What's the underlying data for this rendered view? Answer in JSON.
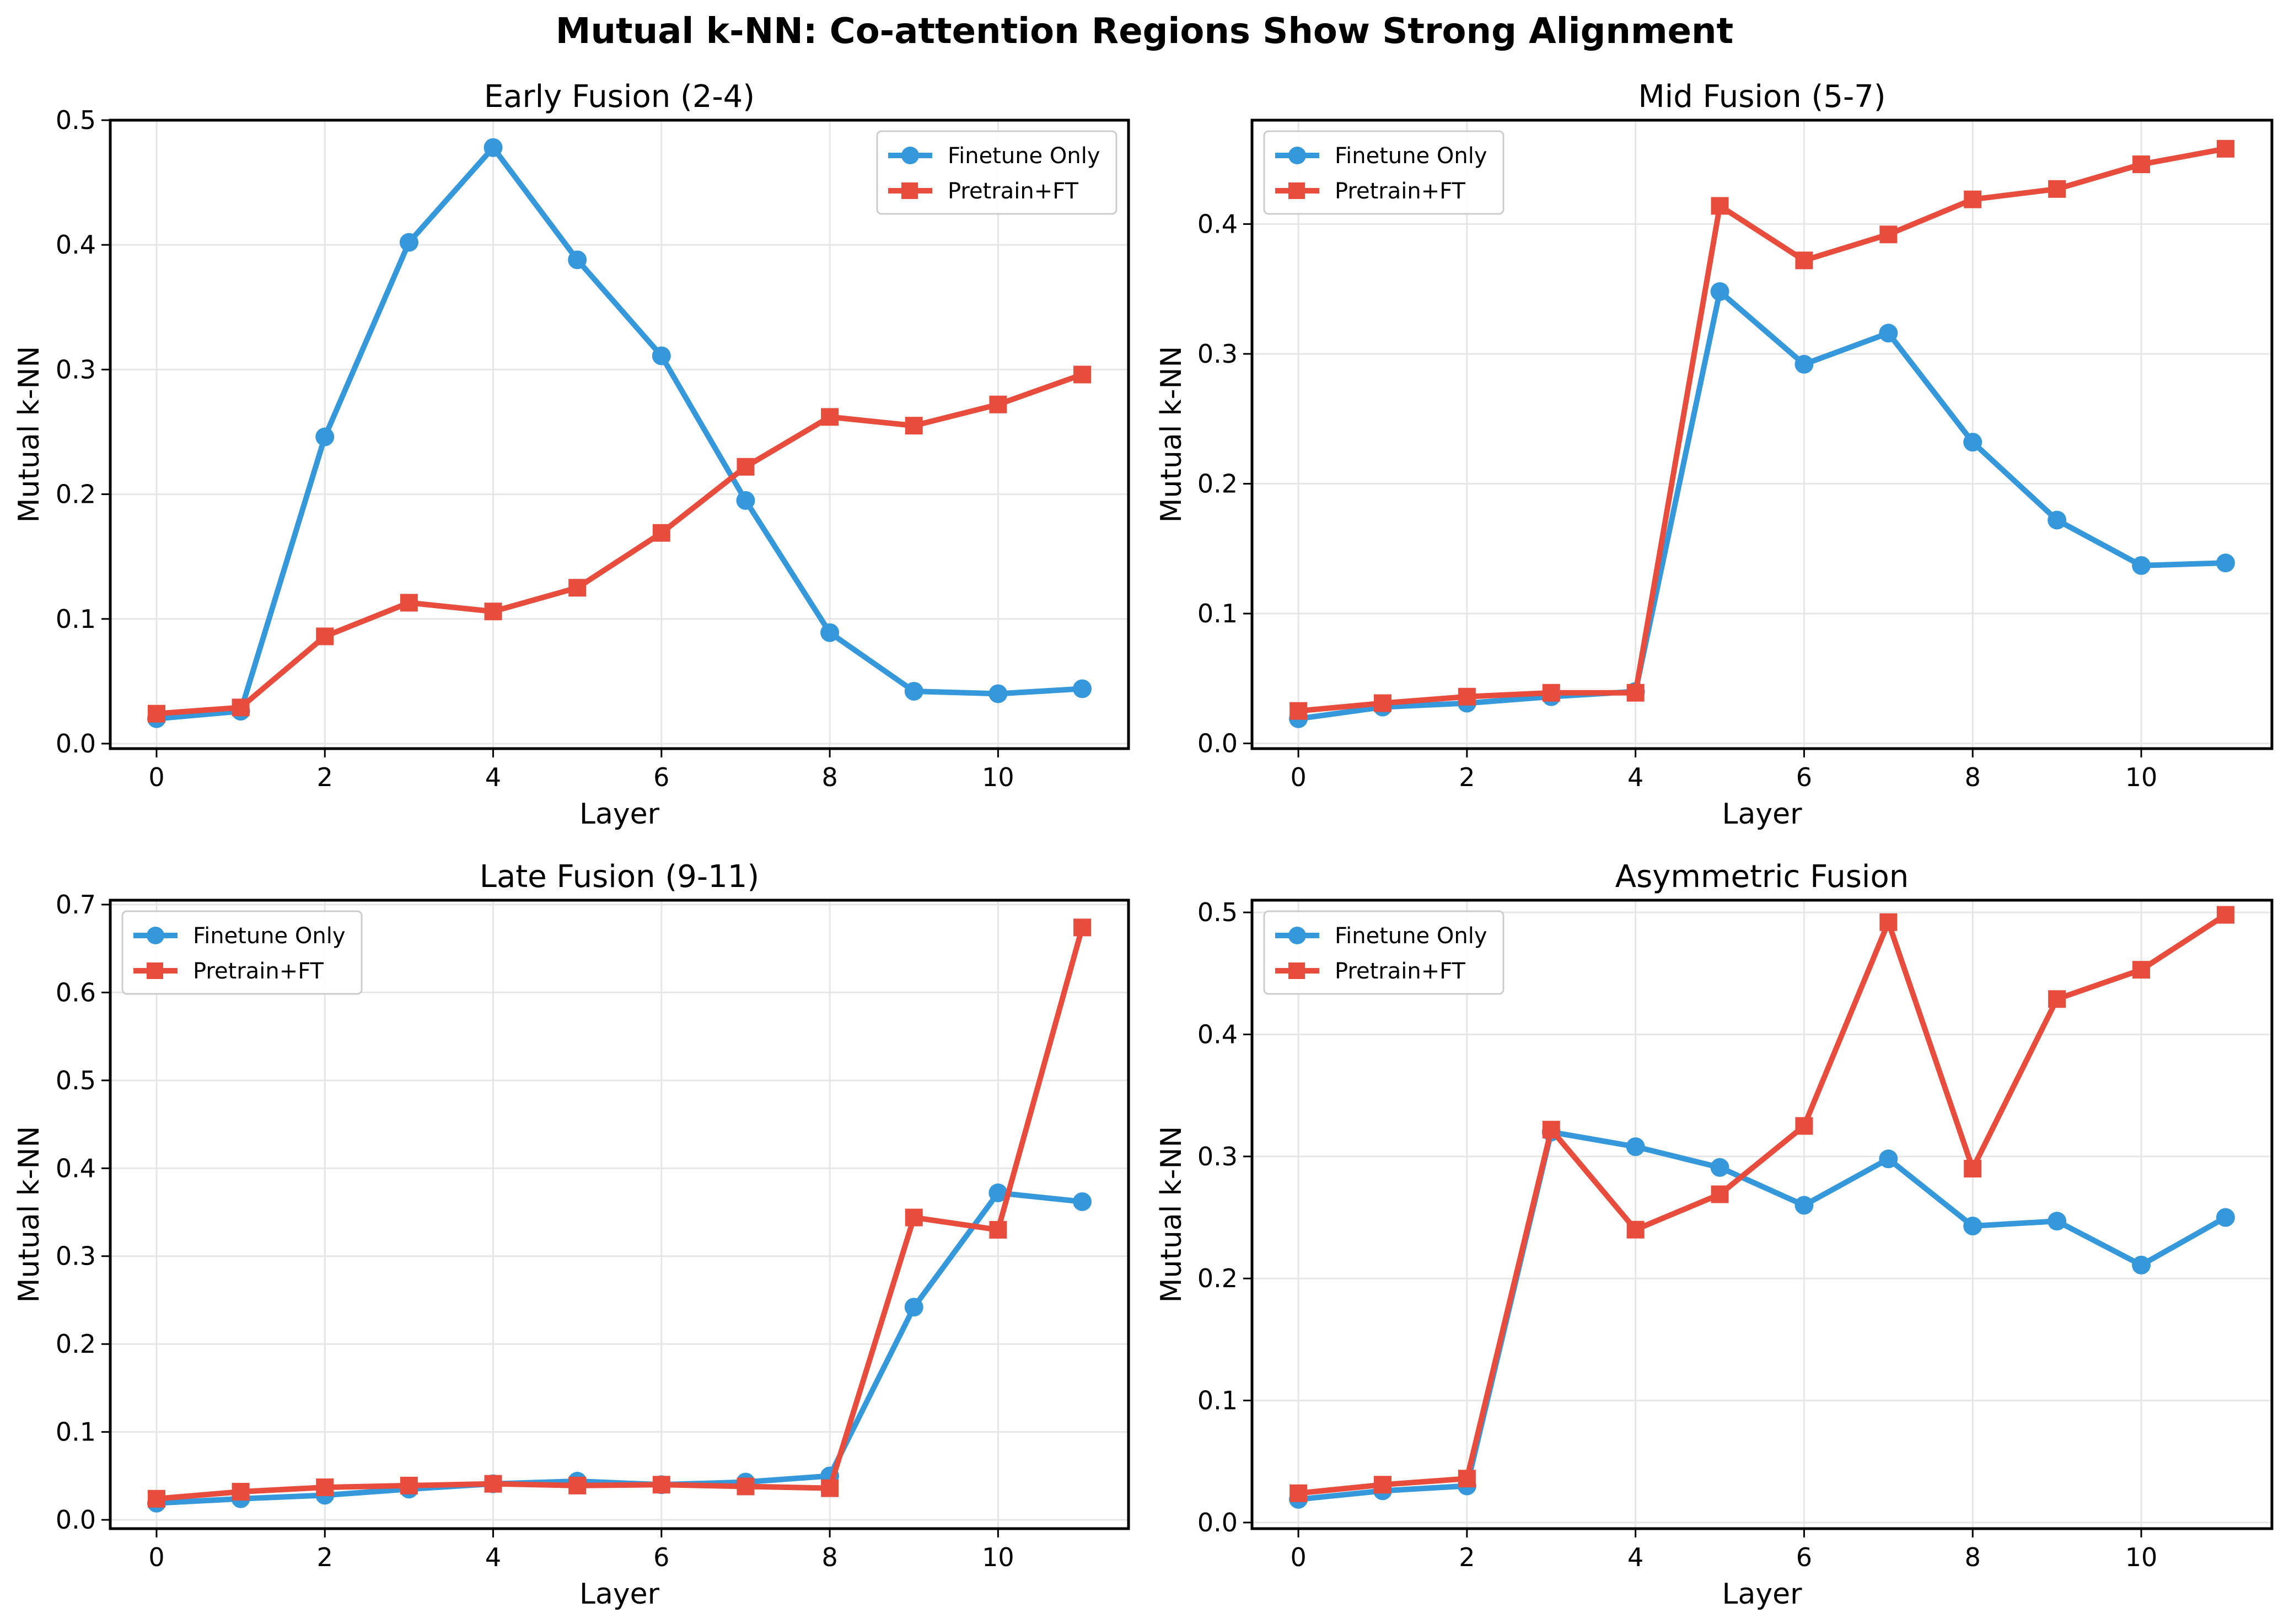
{
  "figure_title": "Mutual k-NN: Co-attention Regions Show Strong Alignment",
  "colors": {
    "finetune": "#3498db",
    "pretrain": "#e74c3c",
    "grid": "#e6e6e6",
    "axes": "#000000"
  },
  "legend": {
    "finetune": "Finetune Only",
    "pretrain": "Pretrain+FT"
  },
  "chart_data": [
    {
      "type": "line",
      "title": "Early Fusion (2-4)",
      "xlabel": "Layer",
      "ylabel": "Mutual k-NN",
      "x": [
        0,
        1,
        2,
        3,
        4,
        5,
        6,
        7,
        8,
        9,
        10,
        11
      ],
      "xticks": [
        "0",
        "2",
        "4",
        "6",
        "8",
        "10"
      ],
      "yticks": [
        "0.0",
        "0.1",
        "0.2",
        "0.3",
        "0.4",
        "0.5"
      ],
      "xlim": [
        -0.55,
        11.55
      ],
      "ylim": [
        -0.004,
        0.5
      ],
      "grid": true,
      "legend_position": "upper right",
      "series": [
        {
          "name": "Finetune Only",
          "marker": "circle",
          "values": [
            0.02,
            0.026,
            0.246,
            0.402,
            0.478,
            0.388,
            0.311,
            0.195,
            0.089,
            0.042,
            0.04,
            0.044
          ]
        },
        {
          "name": "Pretrain+FT",
          "marker": "square",
          "values": [
            0.024,
            0.029,
            0.086,
            0.113,
            0.106,
            0.125,
            0.169,
            0.222,
            0.262,
            0.255,
            0.272,
            0.296
          ]
        }
      ]
    },
    {
      "type": "line",
      "title": "Mid Fusion (5-7)",
      "xlabel": "Layer",
      "ylabel": "Mutual k-NN",
      "x": [
        0,
        1,
        2,
        3,
        4,
        5,
        6,
        7,
        8,
        9,
        10,
        11
      ],
      "xticks": [
        "0",
        "2",
        "4",
        "6",
        "8",
        "10"
      ],
      "yticks": [
        "0.0",
        "0.1",
        "0.2",
        "0.3",
        "0.4"
      ],
      "xlim": [
        -0.55,
        11.55
      ],
      "ylim": [
        -0.004,
        0.48
      ],
      "grid": true,
      "legend_position": "upper left",
      "series": [
        {
          "name": "Finetune Only",
          "marker": "circle",
          "values": [
            0.019,
            0.028,
            0.031,
            0.036,
            0.04,
            0.348,
            0.292,
            0.316,
            0.232,
            0.172,
            0.137,
            0.139
          ]
        },
        {
          "name": "Pretrain+FT",
          "marker": "square",
          "values": [
            0.025,
            0.031,
            0.036,
            0.039,
            0.039,
            0.414,
            0.372,
            0.392,
            0.419,
            0.427,
            0.446,
            0.458
          ]
        }
      ]
    },
    {
      "type": "line",
      "title": "Late Fusion (9-11)",
      "xlabel": "Layer",
      "ylabel": "Mutual k-NN",
      "x": [
        0,
        1,
        2,
        3,
        4,
        5,
        6,
        7,
        8,
        9,
        10,
        11
      ],
      "xticks": [
        "0",
        "2",
        "4",
        "6",
        "8",
        "10"
      ],
      "yticks": [
        "0.0",
        "0.1",
        "0.2",
        "0.3",
        "0.4",
        "0.5",
        "0.6",
        "0.7"
      ],
      "xlim": [
        -0.55,
        11.55
      ],
      "ylim": [
        -0.01,
        0.705
      ],
      "grid": true,
      "legend_position": "upper left",
      "series": [
        {
          "name": "Finetune Only",
          "marker": "circle",
          "values": [
            0.019,
            0.024,
            0.028,
            0.035,
            0.041,
            0.044,
            0.04,
            0.043,
            0.05,
            0.242,
            0.372,
            0.362
          ]
        },
        {
          "name": "Pretrain+FT",
          "marker": "square",
          "values": [
            0.024,
            0.032,
            0.037,
            0.039,
            0.041,
            0.039,
            0.04,
            0.038,
            0.036,
            0.344,
            0.33,
            0.674
          ]
        }
      ]
    },
    {
      "type": "line",
      "title": "Asymmetric Fusion",
      "xlabel": "Layer",
      "ylabel": "Mutual k-NN",
      "x": [
        0,
        1,
        2,
        3,
        4,
        5,
        6,
        7,
        8,
        9,
        10,
        11
      ],
      "xticks": [
        "0",
        "2",
        "4",
        "6",
        "8",
        "10"
      ],
      "yticks": [
        "0.0",
        "0.1",
        "0.2",
        "0.3",
        "0.4",
        "0.5"
      ],
      "xlim": [
        -0.55,
        11.55
      ],
      "ylim": [
        -0.005,
        0.51
      ],
      "grid": true,
      "legend_position": "upper left",
      "series": [
        {
          "name": "Finetune Only",
          "marker": "circle",
          "values": [
            0.019,
            0.026,
            0.03,
            0.32,
            0.308,
            0.291,
            0.26,
            0.298,
            0.243,
            0.247,
            0.211,
            0.25
          ]
        },
        {
          "name": "Pretrain+FT",
          "marker": "square",
          "values": [
            0.024,
            0.031,
            0.036,
            0.322,
            0.24,
            0.269,
            0.325,
            0.492,
            0.29,
            0.429,
            0.453,
            0.498
          ]
        }
      ]
    }
  ]
}
